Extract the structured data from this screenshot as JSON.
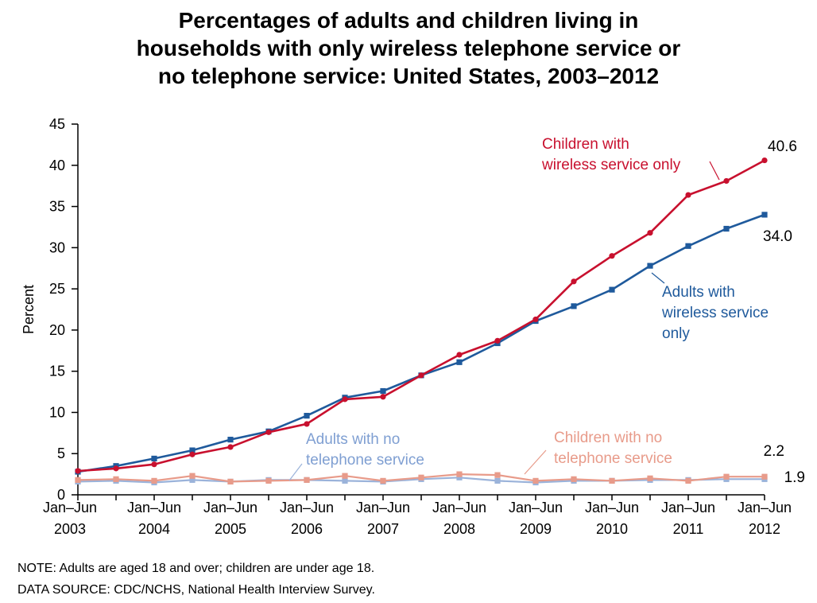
{
  "chart_data": {
    "type": "line",
    "title_lines": [
      "Percentages of adults and children living in",
      "households with only wireless telephone service or",
      "no telephone service: United States, 2003–2012"
    ],
    "ylabel": "Percent",
    "ylim": [
      0,
      45
    ],
    "yticks": [
      "0",
      "5",
      "10",
      "15",
      "20",
      "25",
      "30",
      "35",
      "40",
      "45"
    ],
    "x_top_labels": [
      "Jan–Jun",
      "Jan–Jun",
      "Jan–Jun",
      "Jan–Jun",
      "Jan–Jun",
      "Jan–Jun",
      "Jan–Jun",
      "Jan–Jun",
      "Jan–Jun",
      "Jan–Jun"
    ],
    "x_bottom_labels": [
      "2003",
      "2004",
      "2005",
      "2006",
      "2007",
      "2008",
      "2009",
      "2010",
      "2011",
      "2012"
    ],
    "x_periods": [
      "Jan–Jun 2003",
      "Jul–Dec 2003",
      "Jan–Jun 2004",
      "Jul–Dec 2004",
      "Jan–Jun 2005",
      "Jul–Dec 2005",
      "Jan–Jun 2006",
      "Jul–Dec 2006",
      "Jan–Jun 2007",
      "Jul–Dec 2007",
      "Jan–Jun 2008",
      "Jul–Dec 2008",
      "Jan–Jun 2009",
      "Jul–Dec 2009",
      "Jan–Jun 2010",
      "Jul–Dec 2010",
      "Jan–Jun 2011",
      "Jul–Dec 2011",
      "Jan–Jun 2012"
    ],
    "series": [
      {
        "name_lines": [
          "Children with",
          "wireless service only"
        ],
        "color": "#c8102e",
        "marker": "circle",
        "values": [
          2.9,
          3.2,
          3.7,
          4.9,
          5.8,
          7.6,
          8.6,
          11.6,
          11.9,
          14.5,
          17.0,
          18.7,
          21.3,
          25.9,
          29.0,
          31.8,
          36.4,
          38.1,
          40.6
        ],
        "end_label": "40.6"
      },
      {
        "name_lines": [
          "Adults with",
          "wireless service",
          "only"
        ],
        "color": "#1f5a9c",
        "marker": "square",
        "values": [
          2.8,
          3.5,
          4.4,
          5.4,
          6.7,
          7.7,
          9.6,
          11.8,
          12.6,
          14.5,
          16.1,
          18.4,
          21.1,
          22.9,
          24.9,
          27.8,
          30.2,
          32.3,
          34.0
        ],
        "end_label": "34.0"
      },
      {
        "name_lines": [
          "Children with no",
          "telephone service"
        ],
        "color": "#e89b8a",
        "marker": "square",
        "values": [
          1.8,
          1.9,
          1.7,
          2.3,
          1.6,
          1.7,
          1.8,
          2.3,
          1.7,
          2.1,
          2.5,
          2.4,
          1.7,
          1.9,
          1.7,
          2.0,
          1.7,
          2.2,
          2.2
        ],
        "end_label": "2.2"
      },
      {
        "name_lines": [
          "Adults with no",
          "telephone service"
        ],
        "color": "#9bb3da",
        "marker": "square",
        "values": [
          1.6,
          1.7,
          1.5,
          1.8,
          1.6,
          1.8,
          1.8,
          1.7,
          1.6,
          1.9,
          2.1,
          1.7,
          1.5,
          1.7,
          1.7,
          1.8,
          1.8,
          1.9,
          1.9
        ],
        "end_label": "1.9"
      }
    ]
  },
  "notes": {
    "note": "NOTE: Adults are aged 18 and over; children are under age 18.",
    "source": "DATA SOURCE: CDC/NCHS, National Health Interview Survey."
  }
}
